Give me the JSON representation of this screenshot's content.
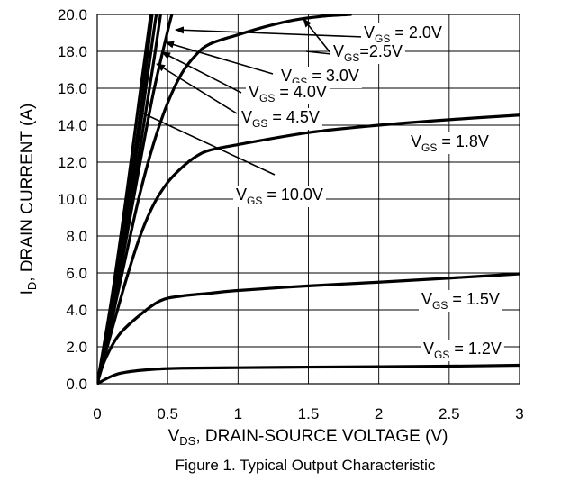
{
  "chart_data": {
    "type": "line",
    "title": "",
    "caption": "Figure 1. Typical Output Characteristic",
    "xlabel": {
      "main": "V",
      "sub": "DS",
      "rest": ", DRAIN-SOURCE VOLTAGE (V)"
    },
    "ylabel": {
      "main": "I",
      "sub": "D",
      "rest": ", DRAIN CURRENT (A)"
    },
    "xlim": [
      0,
      3
    ],
    "ylim": [
      0,
      20
    ],
    "grid": true,
    "x_ticks": [
      "0",
      "0.5",
      "1",
      "1.5",
      "2",
      "2.5",
      "3"
    ],
    "y_ticks": [
      "0.0",
      "2.0",
      "4.0",
      "6.0",
      "8.0",
      "10.0",
      "12.0",
      "14.0",
      "16.0",
      "18.0",
      "20.0"
    ],
    "series": [
      {
        "name": "VGS = 1.2V",
        "label": {
          "pre": "V",
          "sub": "GS",
          "post": " = 1.2V"
        },
        "points": [
          [
            0,
            0
          ],
          [
            0.1,
            0.4
          ],
          [
            0.2,
            0.62
          ],
          [
            0.4,
            0.78
          ],
          [
            0.6,
            0.84
          ],
          [
            1.0,
            0.87
          ],
          [
            1.5,
            0.9
          ],
          [
            2.0,
            0.92
          ],
          [
            2.5,
            0.95
          ],
          [
            3.0,
            1.0
          ]
        ]
      },
      {
        "name": "VGS = 1.5V",
        "label": {
          "pre": "V",
          "sub": "GS",
          "post": " = 1.5V"
        },
        "points": [
          [
            0,
            0
          ],
          [
            0.05,
            1.2
          ],
          [
            0.15,
            2.6
          ],
          [
            0.3,
            3.7
          ],
          [
            0.45,
            4.5
          ],
          [
            0.6,
            4.75
          ],
          [
            0.8,
            4.9
          ],
          [
            1.0,
            5.05
          ],
          [
            1.5,
            5.3
          ],
          [
            2.0,
            5.5
          ],
          [
            2.5,
            5.72
          ],
          [
            3.0,
            5.95
          ]
        ]
      },
      {
        "name": "VGS = 1.8V",
        "label": {
          "pre": "V",
          "sub": "GS",
          "post": " = 1.8V"
        },
        "points": [
          [
            0,
            0
          ],
          [
            0.1,
            2.8
          ],
          [
            0.2,
            5.5
          ],
          [
            0.3,
            7.9
          ],
          [
            0.4,
            9.7
          ],
          [
            0.5,
            10.9
          ],
          [
            0.6,
            11.7
          ],
          [
            0.7,
            12.3
          ],
          [
            0.8,
            12.65
          ],
          [
            1.0,
            12.95
          ],
          [
            1.5,
            13.6
          ],
          [
            2.0,
            14.0
          ],
          [
            2.5,
            14.3
          ],
          [
            3.0,
            14.55
          ]
        ]
      },
      {
        "name": "VGS = 2.0V",
        "label": {
          "pre": "V",
          "sub": "GS",
          "post": " = 2.0V"
        },
        "points": [
          [
            0,
            0
          ],
          [
            0.1,
            3.3
          ],
          [
            0.2,
            6.8
          ],
          [
            0.3,
            10.2
          ],
          [
            0.4,
            13.0
          ],
          [
            0.5,
            15.2
          ],
          [
            0.6,
            16.8
          ],
          [
            0.7,
            17.8
          ],
          [
            0.8,
            18.4
          ],
          [
            1.0,
            18.9
          ],
          [
            1.2,
            19.35
          ],
          [
            1.4,
            19.7
          ],
          [
            1.6,
            19.9
          ],
          [
            1.8,
            20.0
          ]
        ]
      },
      {
        "name": "VGS=2.5V",
        "label": {
          "pre": "V",
          "sub": "GS",
          "post": "=2.5V"
        },
        "points": [
          [
            0,
            0
          ],
          [
            0.1,
            3.6
          ],
          [
            0.2,
            7.6
          ],
          [
            0.3,
            11.8
          ],
          [
            0.4,
            15.8
          ],
          [
            0.5,
            19.1
          ],
          [
            0.53,
            20.0
          ]
        ]
      },
      {
        "name": "VGS = 3.0V",
        "label": {
          "pre": "V",
          "sub": "GS",
          "post": " = 3.0V"
        },
        "points": [
          [
            0,
            0
          ],
          [
            0.1,
            3.8
          ],
          [
            0.2,
            8.0
          ],
          [
            0.3,
            12.6
          ],
          [
            0.4,
            17.4
          ],
          [
            0.45,
            20.0
          ]
        ]
      },
      {
        "name": "VGS = 4.0V",
        "label": {
          "pre": "V",
          "sub": "GS",
          "post": " = 4.0V"
        },
        "points": [
          [
            0,
            0
          ],
          [
            0.1,
            4.0
          ],
          [
            0.2,
            8.6
          ],
          [
            0.3,
            13.6
          ],
          [
            0.4,
            19.0
          ],
          [
            0.42,
            20.0
          ]
        ]
      },
      {
        "name": "VGS = 4.5V",
        "label": {
          "pre": "V",
          "sub": "GS",
          "post": " = 4.5V"
        },
        "points": [
          [
            0,
            0
          ],
          [
            0.1,
            4.2
          ],
          [
            0.2,
            9.0
          ],
          [
            0.3,
            14.3
          ],
          [
            0.39,
            20.0
          ]
        ]
      },
      {
        "name": "VGS = 10.0V",
        "label": {
          "pre": "V",
          "sub": "GS",
          "post": " = 10.0V"
        },
        "points": [
          [
            0,
            0
          ],
          [
            0.1,
            4.5
          ],
          [
            0.2,
            9.8
          ],
          [
            0.3,
            15.5
          ],
          [
            0.38,
            20.0
          ]
        ]
      }
    ]
  }
}
